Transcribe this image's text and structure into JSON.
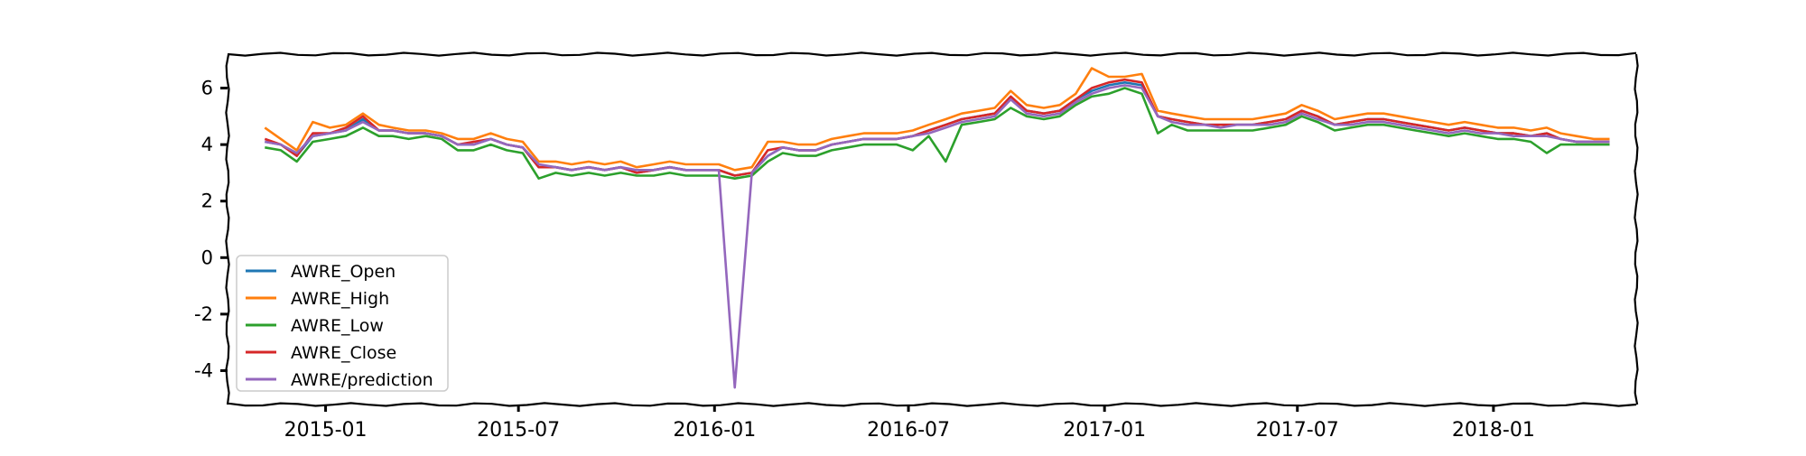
{
  "chart_data": {
    "type": "line",
    "title": "",
    "xlabel": "",
    "ylabel": "",
    "xlim": [
      "2014-10-01",
      "2018-05-15"
    ],
    "ylim": [
      -5.2,
      7.2
    ],
    "x_ticks": [
      {
        "date": "2015-01-01",
        "label": "2015-01"
      },
      {
        "date": "2015-07-01",
        "label": "2015-07"
      },
      {
        "date": "2016-01-01",
        "label": "2016-01"
      },
      {
        "date": "2016-07-01",
        "label": "2016-07"
      },
      {
        "date": "2017-01-01",
        "label": "2017-01"
      },
      {
        "date": "2017-07-01",
        "label": "2017-07"
      },
      {
        "date": "2018-01-01",
        "label": "2018-01"
      }
    ],
    "y_ticks": [
      {
        "value": 6,
        "label": "6"
      },
      {
        "value": 4,
        "label": "4"
      },
      {
        "value": 2,
        "label": "2"
      },
      {
        "value": 0,
        "label": "0"
      },
      {
        "value": -2,
        "label": "-2"
      },
      {
        "value": -4,
        "label": "-4"
      }
    ],
    "legend_position": "lower-left",
    "grid": false,
    "x": [
      "2014-11-05",
      "2014-11-20",
      "2014-12-05",
      "2014-12-20",
      "2015-01-05",
      "2015-01-20",
      "2015-02-05",
      "2015-02-20",
      "2015-03-05",
      "2015-03-20",
      "2015-04-05",
      "2015-04-20",
      "2015-05-05",
      "2015-05-20",
      "2015-06-05",
      "2015-06-20",
      "2015-07-05",
      "2015-07-20",
      "2015-08-05",
      "2015-08-20",
      "2015-09-05",
      "2015-09-20",
      "2015-10-05",
      "2015-10-20",
      "2015-11-05",
      "2015-11-20",
      "2015-12-05",
      "2015-12-20",
      "2016-01-05",
      "2016-01-20",
      "2016-02-05",
      "2016-02-20",
      "2016-03-05",
      "2016-03-20",
      "2016-04-05",
      "2016-04-20",
      "2016-05-05",
      "2016-05-20",
      "2016-06-05",
      "2016-06-20",
      "2016-07-05",
      "2016-07-20",
      "2016-08-05",
      "2016-08-20",
      "2016-09-05",
      "2016-09-20",
      "2016-10-05",
      "2016-10-20",
      "2016-11-05",
      "2016-11-20",
      "2016-12-05",
      "2016-12-20",
      "2017-01-05",
      "2017-01-20",
      "2017-02-05",
      "2017-02-20",
      "2017-03-05",
      "2017-03-20",
      "2017-04-05",
      "2017-04-20",
      "2017-05-05",
      "2017-05-20",
      "2017-06-05",
      "2017-06-20",
      "2017-07-05",
      "2017-07-20",
      "2017-08-05",
      "2017-08-20",
      "2017-09-05",
      "2017-09-20",
      "2017-10-05",
      "2017-10-20",
      "2017-11-05",
      "2017-11-20",
      "2017-12-05",
      "2017-12-20",
      "2018-01-05",
      "2018-01-20",
      "2018-02-05",
      "2018-02-20",
      "2018-03-05",
      "2018-03-20",
      "2018-04-05",
      "2018-04-20"
    ],
    "series": [
      {
        "name": "AWRE_Open",
        "color": "#1f77b4",
        "values": [
          4.1,
          4.0,
          3.6,
          4.3,
          4.4,
          4.5,
          4.9,
          4.5,
          4.5,
          4.4,
          4.4,
          4.3,
          4.0,
          4.0,
          4.2,
          4.0,
          3.9,
          3.2,
          3.2,
          3.1,
          3.2,
          3.1,
          3.2,
          3.0,
          3.1,
          3.2,
          3.1,
          3.1,
          3.1,
          2.9,
          3.0,
          3.6,
          3.9,
          3.8,
          3.8,
          4.0,
          4.1,
          4.2,
          4.2,
          4.2,
          4.3,
          4.5,
          4.7,
          4.9,
          5.0,
          5.1,
          5.6,
          5.2,
          5.1,
          5.2,
          5.6,
          5.9,
          6.1,
          6.2,
          6.1,
          5.0,
          4.9,
          4.8,
          4.7,
          4.7,
          4.7,
          4.7,
          4.8,
          4.9,
          5.2,
          5.0,
          4.7,
          4.8,
          4.9,
          4.9,
          4.8,
          4.7,
          4.6,
          4.5,
          4.6,
          4.5,
          4.4,
          4.4,
          4.3,
          4.4,
          4.2,
          4.1,
          4.1,
          4.1
        ]
      },
      {
        "name": "AWRE_High",
        "color": "#ff7f0e",
        "values": [
          4.6,
          4.2,
          3.8,
          4.8,
          4.6,
          4.7,
          5.1,
          4.7,
          4.6,
          4.5,
          4.5,
          4.4,
          4.2,
          4.2,
          4.4,
          4.2,
          4.1,
          3.4,
          3.4,
          3.3,
          3.4,
          3.3,
          3.4,
          3.2,
          3.3,
          3.4,
          3.3,
          3.3,
          3.3,
          3.1,
          3.2,
          4.1,
          4.1,
          4.0,
          4.0,
          4.2,
          4.3,
          4.4,
          4.4,
          4.4,
          4.5,
          4.7,
          4.9,
          5.1,
          5.2,
          5.3,
          5.9,
          5.4,
          5.3,
          5.4,
          5.8,
          6.7,
          6.4,
          6.4,
          6.5,
          5.2,
          5.1,
          5.0,
          4.9,
          4.9,
          4.9,
          4.9,
          5.0,
          5.1,
          5.4,
          5.2,
          4.9,
          5.0,
          5.1,
          5.1,
          5.0,
          4.9,
          4.8,
          4.7,
          4.8,
          4.7,
          4.6,
          4.6,
          4.5,
          4.6,
          4.4,
          4.3,
          4.2,
          4.2
        ]
      },
      {
        "name": "AWRE_Low",
        "color": "#2ca02c",
        "values": [
          3.9,
          3.8,
          3.4,
          4.1,
          4.2,
          4.3,
          4.6,
          4.3,
          4.3,
          4.2,
          4.3,
          4.2,
          3.8,
          3.8,
          4.0,
          3.8,
          3.7,
          2.8,
          3.0,
          2.9,
          3.0,
          2.9,
          3.0,
          2.9,
          2.9,
          3.0,
          2.9,
          2.9,
          2.9,
          2.8,
          2.9,
          3.4,
          3.7,
          3.6,
          3.6,
          3.8,
          3.9,
          4.0,
          4.0,
          4.0,
          3.8,
          4.3,
          3.4,
          4.7,
          4.8,
          4.9,
          5.3,
          5.0,
          4.9,
          5.0,
          5.4,
          5.7,
          5.8,
          6.0,
          5.8,
          4.4,
          4.7,
          4.5,
          4.5,
          4.5,
          4.5,
          4.5,
          4.6,
          4.7,
          5.0,
          4.8,
          4.5,
          4.6,
          4.7,
          4.7,
          4.6,
          4.5,
          4.4,
          4.3,
          4.4,
          4.3,
          4.2,
          4.2,
          4.1,
          3.7,
          4.0,
          4.0,
          4.0,
          4.0
        ]
      },
      {
        "name": "AWRE_Close",
        "color": "#d62728",
        "values": [
          4.2,
          4.0,
          3.6,
          4.4,
          4.4,
          4.6,
          5.0,
          4.5,
          4.5,
          4.4,
          4.4,
          4.3,
          4.0,
          4.1,
          4.2,
          4.0,
          3.9,
          3.2,
          3.2,
          3.1,
          3.2,
          3.1,
          3.2,
          3.0,
          3.1,
          3.2,
          3.1,
          3.1,
          3.1,
          2.9,
          3.0,
          3.8,
          3.9,
          3.8,
          3.8,
          4.0,
          4.1,
          4.2,
          4.2,
          4.2,
          4.3,
          4.5,
          4.7,
          4.9,
          5.0,
          5.1,
          5.7,
          5.2,
          5.1,
          5.2,
          5.6,
          6.0,
          6.2,
          6.3,
          6.2,
          5.0,
          4.9,
          4.8,
          4.7,
          4.7,
          4.7,
          4.7,
          4.8,
          4.9,
          5.2,
          5.0,
          4.7,
          4.8,
          4.9,
          4.9,
          4.8,
          4.7,
          4.6,
          4.5,
          4.6,
          4.5,
          4.4,
          4.4,
          4.3,
          4.4,
          4.2,
          4.1,
          4.1,
          4.1
        ]
      },
      {
        "name": "AWRE/prediction",
        "color": "#9467bd",
        "values": [
          4.1,
          4.0,
          3.7,
          4.3,
          4.4,
          4.5,
          4.8,
          4.5,
          4.5,
          4.4,
          4.4,
          4.3,
          4.0,
          4.0,
          4.2,
          4.0,
          3.9,
          3.3,
          3.2,
          3.1,
          3.2,
          3.1,
          3.2,
          3.1,
          3.1,
          3.2,
          3.1,
          3.1,
          3.1,
          -4.6,
          3.0,
          3.6,
          3.9,
          3.8,
          3.8,
          4.0,
          4.1,
          4.2,
          4.2,
          4.2,
          4.3,
          4.4,
          4.6,
          4.8,
          4.9,
          5.0,
          5.6,
          5.1,
          5.0,
          5.1,
          5.5,
          5.8,
          6.0,
          6.1,
          6.0,
          5.0,
          4.8,
          4.7,
          4.7,
          4.6,
          4.7,
          4.7,
          4.7,
          4.8,
          5.1,
          4.9,
          4.7,
          4.7,
          4.8,
          4.8,
          4.7,
          4.6,
          4.5,
          4.4,
          4.5,
          4.4,
          4.4,
          4.3,
          4.3,
          4.3,
          4.2,
          4.1,
          4.1,
          4.1
        ]
      }
    ]
  }
}
